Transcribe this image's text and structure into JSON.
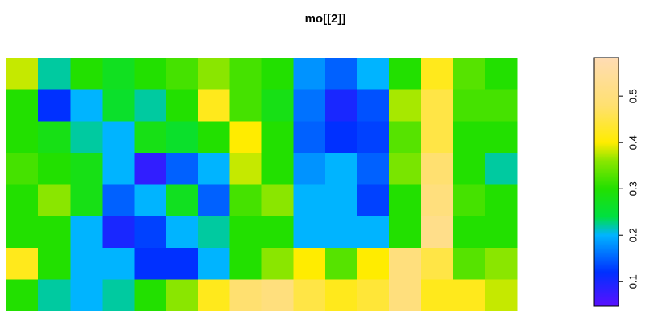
{
  "chart_data": {
    "type": "raster",
    "title": "mo[[2]]",
    "z": [
      [
        0.38,
        0.22,
        0.3,
        0.27,
        0.3,
        0.32,
        0.36,
        0.32,
        0.3,
        0.18,
        0.15,
        0.2,
        0.3,
        0.42,
        0.33,
        0.3
      ],
      [
        0.3,
        0.12,
        0.2,
        0.26,
        0.22,
        0.3,
        0.42,
        0.32,
        0.28,
        0.16,
        0.1,
        0.14,
        0.37,
        0.45,
        0.32,
        0.32
      ],
      [
        0.3,
        0.28,
        0.22,
        0.2,
        0.28,
        0.26,
        0.3,
        0.4,
        0.3,
        0.15,
        0.12,
        0.13,
        0.33,
        0.45,
        0.3,
        0.3
      ],
      [
        0.32,
        0.3,
        0.28,
        0.2,
        0.08,
        0.15,
        0.2,
        0.38,
        0.3,
        0.18,
        0.2,
        0.15,
        0.35,
        0.48,
        0.3,
        0.22
      ],
      [
        0.3,
        0.36,
        0.28,
        0.15,
        0.2,
        0.27,
        0.15,
        0.32,
        0.36,
        0.2,
        0.2,
        0.13,
        0.3,
        0.5,
        0.32,
        0.3
      ],
      [
        0.3,
        0.3,
        0.2,
        0.1,
        0.13,
        0.2,
        0.22,
        0.3,
        0.3,
        0.2,
        0.2,
        0.2,
        0.3,
        0.52,
        0.3,
        0.3
      ],
      [
        0.42,
        0.3,
        0.2,
        0.2,
        0.12,
        0.12,
        0.2,
        0.3,
        0.36,
        0.4,
        0.33,
        0.4,
        0.5,
        0.45,
        0.33,
        0.36
      ],
      [
        0.3,
        0.22,
        0.2,
        0.22,
        0.3,
        0.36,
        0.42,
        0.48,
        0.5,
        0.45,
        0.42,
        0.44,
        0.5,
        0.42,
        0.42,
        0.38
      ]
    ],
    "zlim": [
      0.047,
      0.583
    ],
    "zticks": [
      0.1,
      0.2,
      0.3,
      0.4,
      0.5
    ],
    "colorscale": [
      [
        0.047,
        "#5a10ff"
      ],
      [
        0.12,
        "#0030ff"
      ],
      [
        0.2,
        "#00b4ff"
      ],
      [
        0.24,
        "#00e040"
      ],
      [
        0.3,
        "#22e000"
      ],
      [
        0.36,
        "#8ae600"
      ],
      [
        0.4,
        "#ffec00"
      ],
      [
        0.48,
        "#ffe070"
      ],
      [
        0.583,
        "#ffdcb4"
      ]
    ]
  }
}
